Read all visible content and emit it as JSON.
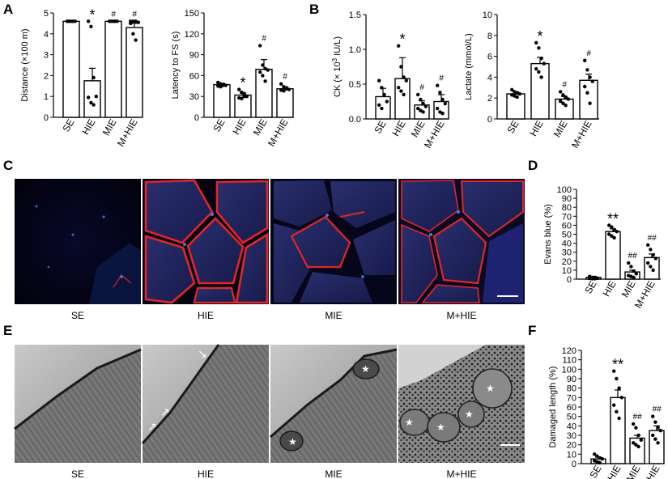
{
  "panel_labels": {
    "a": "A",
    "b": "B",
    "c": "C",
    "d": "D",
    "e": "E",
    "f": "F"
  },
  "image_captions": [
    "SE",
    "HIE",
    "MIE",
    "M+HIE"
  ],
  "chart_data": [
    {
      "id": "distance",
      "panel": "A",
      "type": "bar",
      "ylabel_pre": "Distance (",
      "ylabel_times": "×",
      "ylabel_post": "100 m)",
      "yticks": [
        "0",
        "1",
        "2",
        "3",
        "4",
        "5"
      ],
      "ylim": [
        0,
        5
      ],
      "categories": [
        "SE",
        "HIE",
        "MIE",
        "M+HIE"
      ],
      "values": [
        4.6,
        1.75,
        4.6,
        4.3
      ],
      "errors": [
        0,
        0.6,
        0,
        0.2
      ],
      "points": [
        [
          4.6,
          4.6,
          4.6,
          4.6,
          4.6,
          4.6,
          4.6
        ],
        [
          4.6,
          4.35,
          1.9,
          1.0,
          0.95,
          0.7,
          0.6
        ],
        [
          4.6,
          4.6,
          4.6,
          4.6,
          4.6,
          4.6,
          4.6
        ],
        [
          4.6,
          4.6,
          4.6,
          4.55,
          4.5,
          4.0,
          3.7
        ]
      ],
      "marks": [
        "",
        "*",
        "#",
        "#"
      ]
    },
    {
      "id": "latency",
      "panel": "A",
      "type": "bar",
      "ylabel": "Latency to FS (s)",
      "yticks": [
        "0",
        "30",
        "60",
        "90",
        "120",
        "150"
      ],
      "ylim": [
        0,
        150
      ],
      "categories": [
        "SE",
        "HIE",
        "MIE",
        "M+HIE"
      ],
      "values": [
        47,
        32,
        69,
        41
      ],
      "errors": [
        2,
        3,
        14,
        3
      ],
      "points": [
        [
          50,
          48,
          47,
          46,
          45,
          44,
          46
        ],
        [
          40,
          36,
          34,
          30,
          28,
          27,
          30
        ],
        [
          103,
          75,
          70,
          68,
          65,
          60,
          52
        ],
        [
          48,
          44,
          42,
          40,
          39,
          38,
          41
        ]
      ],
      "marks": [
        "",
        "*",
        "#",
        "#"
      ]
    },
    {
      "id": "ck",
      "panel": "B",
      "type": "bar",
      "ylabel_pre": "CK (",
      "ylabel_times": "×",
      "ylabel_base": "10",
      "ylabel_exp": "3",
      "ylabel_post": " IU/L)",
      "yticks": [
        "0.0",
        "0.5",
        "1.0",
        "1.5"
      ],
      "ylim": [
        0,
        1.5
      ],
      "categories": [
        "SE",
        "HIE",
        "MIE",
        "M+HIE"
      ],
      "values": [
        0.32,
        0.58,
        0.2,
        0.25
      ],
      "errors": [
        0.12,
        0.3,
        0.06,
        0.1
      ],
      "points": [
        [
          0.55,
          0.45,
          0.35,
          0.25,
          0.2,
          0.15
        ],
        [
          1.05,
          0.75,
          0.6,
          0.55,
          0.45,
          0.4,
          0.35
        ],
        [
          0.35,
          0.28,
          0.22,
          0.18,
          0.15,
          0.12,
          0.1
        ],
        [
          0.48,
          0.38,
          0.28,
          0.22,
          0.15,
          0.1,
          0.08
        ]
      ],
      "marks": [
        "",
        "*",
        "#",
        "#"
      ]
    },
    {
      "id": "lactate",
      "panel": "B",
      "type": "bar",
      "ylabel": "Lactate (mmol/L)",
      "yticks": [
        "0",
        "2",
        "4",
        "6",
        "8",
        "10"
      ],
      "ylim": [
        0,
        10
      ],
      "categories": [
        "SE",
        "HIE",
        "MIE",
        "M+HIE"
      ],
      "values": [
        2.4,
        5.3,
        1.9,
        3.7
      ],
      "errors": [
        0.2,
        0.6,
        0.25,
        0.6
      ],
      "points": [
        [
          2.8,
          2.6,
          2.5,
          2.4,
          2.3,
          2.2,
          2.1
        ],
        [
          7.3,
          6.8,
          5.8,
          5.3,
          4.8,
          4.5,
          4.0
        ],
        [
          2.6,
          2.3,
          2.1,
          1.9,
          1.7,
          1.5,
          1.3
        ],
        [
          5.6,
          4.7,
          4.0,
          3.6,
          3.1,
          2.5,
          1.5
        ]
      ],
      "marks": [
        "",
        "*",
        "#",
        "#"
      ]
    },
    {
      "id": "evans",
      "panel": "D",
      "type": "bar",
      "ylabel": "Evans blue (%)",
      "yticks": [
        "0",
        "10",
        "20",
        "30",
        "40",
        "50",
        "60",
        "70",
        "80",
        "90",
        "100"
      ],
      "ylim": [
        0,
        100
      ],
      "categories": [
        "SE",
        "HIE",
        "MIE",
        "M+HIE"
      ],
      "values": [
        2,
        53,
        8,
        24
      ],
      "errors": [
        1,
        3,
        2,
        4
      ],
      "points": [
        [
          3,
          2,
          2,
          1,
          1,
          0.5,
          0.5
        ],
        [
          60,
          58,
          55,
          53,
          50,
          48,
          46
        ],
        [
          18,
          14,
          9,
          6,
          4,
          3,
          2
        ],
        [
          38,
          33,
          27,
          23,
          18,
          14,
          10
        ]
      ],
      "marks": [
        "",
        "**",
        "##",
        "##"
      ]
    },
    {
      "id": "damaged",
      "panel": "F",
      "type": "bar",
      "ylabel": "Damaged length (%)",
      "yticks": [
        "0",
        "10",
        "20",
        "30",
        "40",
        "50",
        "60",
        "70",
        "80",
        "90",
        "100",
        "110",
        "120"
      ],
      "ylim": [
        0,
        120
      ],
      "categories": [
        "SE",
        "HIE",
        "MIE",
        "M+HIE"
      ],
      "values": [
        5,
        70,
        27,
        35
      ],
      "errors": [
        2,
        8,
        3,
        5
      ],
      "points": [
        [
          10,
          8,
          6,
          5,
          3,
          2,
          1
        ],
        [
          98,
          90,
          80,
          70,
          62,
          55,
          48
        ],
        [
          42,
          38,
          30,
          25,
          22,
          20,
          18
        ],
        [
          50,
          44,
          38,
          35,
          30,
          26,
          22
        ]
      ],
      "marks": [
        "",
        "**",
        "##",
        "##"
      ]
    }
  ]
}
